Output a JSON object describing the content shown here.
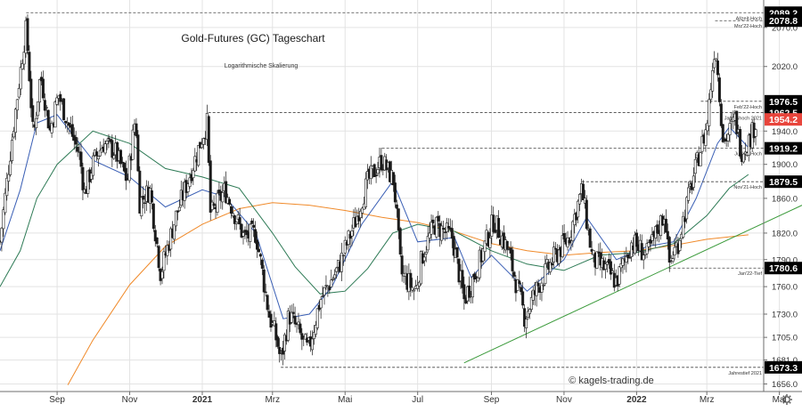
{
  "chart_data": {
    "type": "candlestick",
    "title": "Gold-Futures (GC) Tageschart",
    "subtitle": "Logarithmische Skalierung",
    "watermark": "© kagels-trading.de",
    "x_axis": {
      "start": "2020-07-15",
      "end": "2022-05-20",
      "tick_labels": [
        {
          "date": "2020-09-01",
          "label": "Sep",
          "bold": false
        },
        {
          "date": "2020-11-01",
          "label": "Nov",
          "bold": false
        },
        {
          "date": "2021-01-01",
          "label": "2021",
          "bold": true
        },
        {
          "date": "2021-03-01",
          "label": "Mrz",
          "bold": false
        },
        {
          "date": "2021-05-01",
          "label": "Mai",
          "bold": false
        },
        {
          "date": "2021-07-01",
          "label": "Jul",
          "bold": false
        },
        {
          "date": "2021-09-01",
          "label": "Sep",
          "bold": false
        },
        {
          "date": "2021-11-01",
          "label": "Nov",
          "bold": false
        },
        {
          "date": "2022-01-01",
          "label": "2022",
          "bold": true
        },
        {
          "date": "2022-03-01",
          "label": "Mrz",
          "bold": false
        },
        {
          "date": "2022-05-01",
          "label": "Mai",
          "bold": false
        }
      ]
    },
    "y_axis": {
      "scale": "log",
      "range": [
        1650,
        2100
      ],
      "tick_values": [
        2070.0,
        2020.0,
        1940.0,
        1900.0,
        1860.0,
        1820.0,
        1790.0,
        1760.0,
        1730.0,
        1705.0,
        1681.0,
        1656.0
      ],
      "grid": true
    },
    "levels": [
      {
        "value": 2089.2,
        "label": "Allzeit-Hoch",
        "start": "2020-08-06",
        "badge": "2089.2",
        "badge_color": "#000000"
      },
      {
        "value": 2078.8,
        "label": "Mrz'22-Hoch",
        "start": "2022-03-08",
        "badge": "2078.8",
        "badge_color": "#000000"
      },
      {
        "value": 1976.5,
        "label": "Feb'22-Hoch",
        "start": "2022-02-24",
        "badge": "1976.5",
        "badge_color": "#000000"
      },
      {
        "value": 1962.5,
        "label": "Jahreshoch 2021",
        "start": "2021-01-06",
        "badge": "1962.5",
        "badge_color": "#000000"
      },
      {
        "value": 1954.2,
        "label": "",
        "start": null,
        "badge": "1954.2",
        "badge_color": "#e8453c"
      },
      {
        "value": 1919.2,
        "label": "Jun'21-Hoch",
        "start": "2021-06-01",
        "badge": "1919.2",
        "badge_color": "#000000"
      },
      {
        "value": 1879.5,
        "label": "Nov'21-Hoch",
        "start": "2021-11-16",
        "badge": "1879.5",
        "badge_color": "#000000"
      },
      {
        "value": 1780.6,
        "label": "Jan'22-Tief",
        "start": "2022-01-28",
        "badge": "1780.6",
        "badge_color": "#000000"
      },
      {
        "value": 1673.3,
        "label": "Jahrestief 2021",
        "start": "2021-03-08",
        "badge": "1673.3",
        "badge_color": "#000000"
      }
    ],
    "trendline": {
      "color": "#3a9a3a",
      "points": [
        [
          "2021-08-09",
          1678
        ],
        [
          "2022-05-20",
          1852
        ]
      ]
    },
    "moving_averages": [
      {
        "color": "#f08a2a",
        "points": [
          [
            "2020-09-10",
            1655
          ],
          [
            "2020-10-01",
            1702
          ],
          [
            "2020-11-01",
            1762
          ],
          [
            "2020-12-01",
            1805
          ],
          [
            "2021-01-01",
            1830
          ],
          [
            "2021-02-01",
            1848
          ],
          [
            "2021-03-01",
            1855
          ],
          [
            "2021-04-01",
            1852
          ],
          [
            "2021-05-01",
            1846
          ],
          [
            "2021-06-01",
            1838
          ],
          [
            "2021-07-01",
            1832
          ],
          [
            "2021-08-01",
            1822
          ],
          [
            "2021-09-01",
            1808
          ],
          [
            "2021-10-01",
            1800
          ],
          [
            "2021-11-01",
            1795
          ],
          [
            "2021-12-01",
            1798
          ],
          [
            "2022-01-01",
            1800
          ],
          [
            "2022-02-01",
            1806
          ],
          [
            "2022-03-01",
            1813
          ],
          [
            "2022-04-05",
            1818
          ]
        ]
      },
      {
        "color": "#2d7a55",
        "points": [
          [
            "2020-07-15",
            1760
          ],
          [
            "2020-08-01",
            1800
          ],
          [
            "2020-08-15",
            1860
          ],
          [
            "2020-09-01",
            1900
          ],
          [
            "2020-10-01",
            1940
          ],
          [
            "2020-11-01",
            1925
          ],
          [
            "2020-12-01",
            1895
          ],
          [
            "2021-01-01",
            1885
          ],
          [
            "2021-02-01",
            1872
          ],
          [
            "2021-03-01",
            1820
          ],
          [
            "2021-03-20",
            1782
          ],
          [
            "2021-04-10",
            1752
          ],
          [
            "2021-05-01",
            1755
          ],
          [
            "2021-05-20",
            1780
          ],
          [
            "2021-06-10",
            1820
          ],
          [
            "2021-07-01",
            1830
          ],
          [
            "2021-08-01",
            1822
          ],
          [
            "2021-09-01",
            1800
          ],
          [
            "2021-10-01",
            1785
          ],
          [
            "2021-11-01",
            1778
          ],
          [
            "2021-12-01",
            1795
          ],
          [
            "2022-01-01",
            1798
          ],
          [
            "2022-02-01",
            1808
          ],
          [
            "2022-03-01",
            1840
          ],
          [
            "2022-03-20",
            1872
          ],
          [
            "2022-04-05",
            1888
          ]
        ]
      },
      {
        "color": "#3a5fb5",
        "points": [
          [
            "2020-07-15",
            1800
          ],
          [
            "2020-08-01",
            1870
          ],
          [
            "2020-08-15",
            1950
          ],
          [
            "2020-09-01",
            1960
          ],
          [
            "2020-10-01",
            1905
          ],
          [
            "2020-11-01",
            1885
          ],
          [
            "2020-12-01",
            1850
          ],
          [
            "2021-01-01",
            1870
          ],
          [
            "2021-01-20",
            1862
          ],
          [
            "2021-02-15",
            1820
          ],
          [
            "2021-03-10",
            1725
          ],
          [
            "2021-04-01",
            1730
          ],
          [
            "2021-04-20",
            1760
          ],
          [
            "2021-05-15",
            1830
          ],
          [
            "2021-06-10",
            1880
          ],
          [
            "2021-07-01",
            1810
          ],
          [
            "2021-08-01",
            1815
          ],
          [
            "2021-08-15",
            1770
          ],
          [
            "2021-09-01",
            1795
          ],
          [
            "2021-10-01",
            1755
          ],
          [
            "2021-11-01",
            1790
          ],
          [
            "2021-11-20",
            1838
          ],
          [
            "2021-12-15",
            1790
          ],
          [
            "2022-01-10",
            1805
          ],
          [
            "2022-02-01",
            1810
          ],
          [
            "2022-02-20",
            1860
          ],
          [
            "2022-03-10",
            1925
          ],
          [
            "2022-03-20",
            1945
          ],
          [
            "2022-04-05",
            1920
          ]
        ]
      }
    ],
    "price_series": [
      [
        "2020-07-15",
        1810
      ],
      [
        "2020-07-28",
        1965
      ],
      [
        "2020-08-06",
        2070
      ],
      [
        "2020-08-12",
        1930
      ],
      [
        "2020-08-18",
        2010
      ],
      [
        "2020-08-26",
        1940
      ],
      [
        "2020-09-02",
        1985
      ],
      [
        "2020-09-10",
        1950
      ],
      [
        "2020-09-20",
        1910
      ],
      [
        "2020-09-24",
        1866
      ],
      [
        "2020-10-02",
        1905
      ],
      [
        "2020-10-10",
        1925
      ],
      [
        "2020-10-20",
        1915
      ],
      [
        "2020-10-30",
        1880
      ],
      [
        "2020-11-06",
        1960
      ],
      [
        "2020-11-09",
        1855
      ],
      [
        "2020-11-18",
        1870
      ],
      [
        "2020-11-27",
        1775
      ],
      [
        "2020-11-30",
        1790
      ],
      [
        "2020-12-10",
        1840
      ],
      [
        "2020-12-21",
        1885
      ],
      [
        "2021-01-05",
        1950
      ],
      [
        "2021-01-08",
        1840
      ],
      [
        "2021-01-20",
        1870
      ],
      [
        "2021-02-05",
        1815
      ],
      [
        "2021-02-15",
        1820
      ],
      [
        "2021-02-26",
        1730
      ],
      [
        "2021-03-05",
        1700
      ],
      [
        "2021-03-08",
        1680
      ],
      [
        "2021-03-15",
        1730
      ],
      [
        "2021-03-31",
        1690
      ],
      [
        "2021-04-10",
        1745
      ],
      [
        "2021-04-25",
        1780
      ],
      [
        "2021-05-10",
        1835
      ],
      [
        "2021-05-20",
        1880
      ],
      [
        "2021-06-01",
        1905
      ],
      [
        "2021-06-11",
        1880
      ],
      [
        "2021-06-17",
        1775
      ],
      [
        "2021-06-29",
        1755
      ],
      [
        "2021-07-05",
        1795
      ],
      [
        "2021-07-15",
        1830
      ],
      [
        "2021-07-30",
        1815
      ],
      [
        "2021-08-09",
        1745
      ],
      [
        "2021-08-12",
        1755
      ],
      [
        "2021-08-20",
        1780
      ],
      [
        "2021-09-03",
        1835
      ],
      [
        "2021-09-15",
        1800
      ],
      [
        "2021-09-29",
        1727
      ],
      [
        "2021-10-10",
        1760
      ],
      [
        "2021-10-25",
        1795
      ],
      [
        "2021-11-05",
        1815
      ],
      [
        "2021-11-16",
        1870
      ],
      [
        "2021-11-25",
        1790
      ],
      [
        "2021-12-06",
        1780
      ],
      [
        "2021-12-15",
        1765
      ],
      [
        "2021-12-28",
        1810
      ],
      [
        "2022-01-10",
        1795
      ],
      [
        "2022-01-25",
        1845
      ],
      [
        "2022-01-28",
        1785
      ],
      [
        "2022-02-05",
        1810
      ],
      [
        "2022-02-15",
        1870
      ],
      [
        "2022-02-24",
        1920
      ],
      [
        "2022-03-01",
        1945
      ],
      [
        "2022-03-08",
        2050
      ],
      [
        "2022-03-15",
        1925
      ],
      [
        "2022-03-25",
        1955
      ],
      [
        "2022-03-30",
        1915
      ],
      [
        "2022-04-06",
        1930
      ],
      [
        "2022-04-12",
        1954
      ]
    ]
  }
}
